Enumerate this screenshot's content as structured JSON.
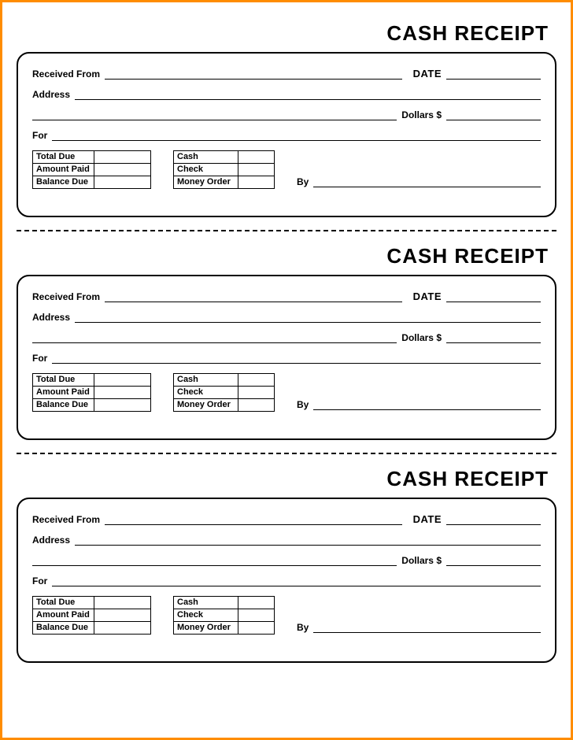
{
  "template": {
    "title": "CASH RECEIPT",
    "received_from": "Received From",
    "date": "DATE",
    "address": "Address",
    "dollars": "Dollars $",
    "for": "For",
    "by": "By",
    "amount_table": [
      "Total Due",
      "Amount Paid",
      "Balance Due"
    ],
    "payment_table": [
      "Cash",
      "Check",
      "Money Order"
    ]
  },
  "style": {
    "border_color": "#ff8c00",
    "text_color": "#000000",
    "background": "#ffffff",
    "title_fontsize": 26,
    "label_fontsize": 12,
    "box_border_radius": 16,
    "receipt_count": 3
  }
}
